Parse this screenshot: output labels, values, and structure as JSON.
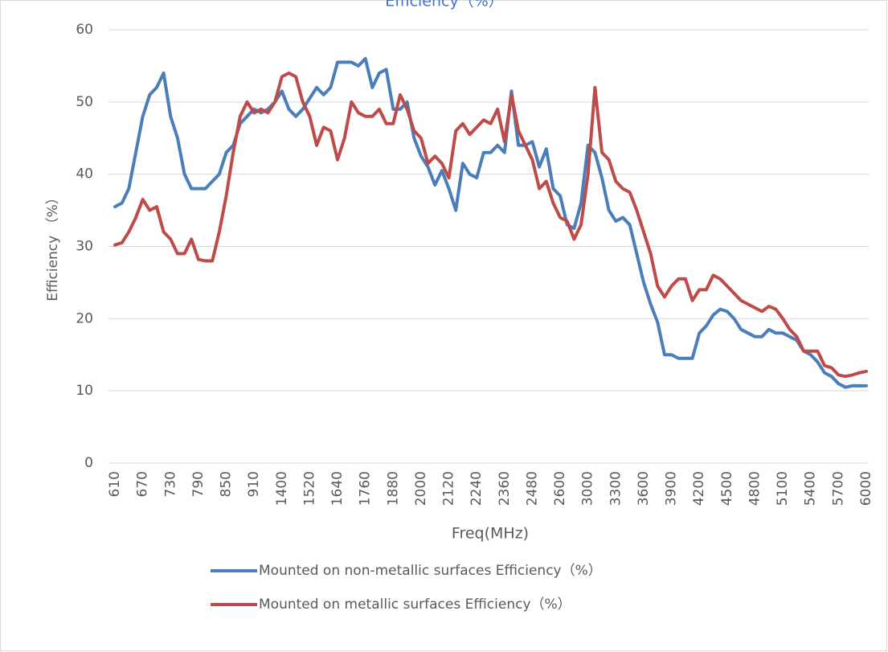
{
  "chart_data": {
    "type": "line",
    "title": "Efficiency（%）",
    "x_label": "Freq(MHz)",
    "y_label": "Efficiency （%）",
    "categories": [
      "610",
      null,
      null,
      null,
      "670",
      null,
      null,
      null,
      "730",
      null,
      null,
      null,
      "790",
      null,
      null,
      null,
      "850",
      null,
      null,
      null,
      "910",
      null,
      null,
      null,
      "1400",
      null,
      null,
      null,
      "1520",
      null,
      null,
      null,
      "1640",
      null,
      null,
      null,
      "1760",
      null,
      null,
      null,
      "1880",
      null,
      null,
      null,
      "2000",
      null,
      null,
      null,
      "2120",
      null,
      null,
      null,
      "2240",
      null,
      null,
      null,
      "2360",
      null,
      null,
      null,
      "2480",
      null,
      null,
      null,
      "2600",
      null,
      null,
      null,
      "3000",
      null,
      null,
      null,
      "3300",
      null,
      null,
      null,
      "3600",
      null,
      null,
      null,
      "3900",
      null,
      null,
      null,
      "4200",
      null,
      null,
      null,
      "4500",
      null,
      null,
      null,
      "4800",
      null,
      null,
      null,
      "5100",
      null,
      null,
      null,
      "5400",
      null,
      null,
      null,
      "5700",
      null,
      null,
      null,
      "6000"
    ],
    "series": [
      {
        "name": "Mounted on non-metallic surfaces Efficiency（%）",
        "color": "#4a7ebb",
        "values": [
          35.5,
          36,
          38,
          43,
          48,
          51,
          52,
          54,
          48,
          45,
          40,
          38,
          38,
          38,
          39,
          40,
          43,
          44,
          47,
          48,
          49,
          48.5,
          49,
          50,
          51.5,
          49,
          48,
          49,
          50.5,
          52,
          51,
          52,
          55.5,
          55.5,
          55.5,
          55,
          56,
          52,
          54,
          54.5,
          49,
          49,
          50,
          45,
          42.5,
          41,
          38.5,
          40.5,
          38,
          35,
          41.5,
          40,
          39.5,
          43,
          43,
          44,
          43,
          51.5,
          44,
          44,
          44.5,
          41,
          43.5,
          38,
          37,
          33,
          32.5,
          36,
          44,
          43,
          39.5,
          35,
          33.5,
          34,
          33,
          29,
          25,
          22,
          19.5,
          15,
          15,
          14.5,
          14.5,
          14.5,
          18,
          19,
          20.5,
          21.3,
          21,
          20,
          18.5,
          18,
          17.5,
          17.5,
          18.5,
          18,
          18,
          17.5,
          17,
          15.5,
          15,
          14,
          12.5,
          12,
          11,
          10.5,
          10.7,
          10.7,
          10.7
        ]
      },
      {
        "name": "Mounted on metallic surfaces Efficiency（%）",
        "color": "#be4b48",
        "values": [
          30.2,
          30.5,
          32,
          34,
          36.5,
          35,
          35.5,
          32,
          31,
          29,
          29,
          31,
          28.2,
          28,
          28,
          32,
          37,
          43,
          48,
          50,
          48.5,
          49,
          48.5,
          50,
          53.5,
          54,
          53.5,
          50,
          48,
          44,
          46.5,
          46,
          42,
          45,
          50,
          48.5,
          48,
          48,
          49,
          47,
          47,
          51,
          49,
          46,
          45,
          41.5,
          42.5,
          41.5,
          39.5,
          46,
          47,
          45.5,
          46.5,
          47.5,
          47,
          49,
          44.5,
          51,
          46,
          44,
          42,
          38,
          39,
          36,
          34,
          33.5,
          31,
          33,
          40,
          52,
          43,
          42,
          39,
          38,
          37.5,
          35,
          32,
          29,
          24.5,
          23,
          24.5,
          25.5,
          25.5,
          22.5,
          24,
          24,
          26,
          25.5,
          24.5,
          23.5,
          22.5,
          22,
          21.5,
          21,
          21.7,
          21.3,
          20,
          18.5,
          17.5,
          15.5,
          15.5,
          15.5,
          13.5,
          13.2,
          12.2,
          12,
          12.2,
          12.5,
          12.7
        ]
      }
    ],
    "ylim": [
      0,
      60
    ],
    "yticks": [
      0,
      10,
      20,
      30,
      40,
      50,
      60
    ],
    "grid": true
  }
}
